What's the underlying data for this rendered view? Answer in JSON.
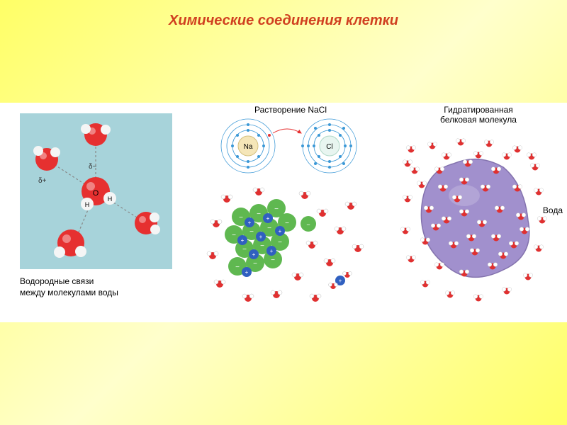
{
  "title": {
    "text": "Химические соединения клетки",
    "color": "#d04020",
    "fontsize": 20
  },
  "panel1": {
    "caption": "Водородные связи\nмежду молекулами воды",
    "bg": "#a7d3da",
    "delta_minus": "δ−",
    "delta_plus": "δ+",
    "labels": {
      "O": "O",
      "H": "H"
    },
    "atom_O_color": "#e63030",
    "atom_H_color": "#f0f0f0",
    "bond_dash": "#888"
  },
  "panel2": {
    "title": "Растворение NaCl",
    "na_label": "Na",
    "cl_label": "Cl",
    "na_fill": "#f5e6b8",
    "cl_fill": "#e8f5f0",
    "orbit_color": "#3b98d6",
    "electron_color": "#3b98d6",
    "ion_green": "#5fb850",
    "ion_blue": "#3060c0",
    "water_red": "#e03030",
    "water_white": "#ffffff"
  },
  "panel3": {
    "title": "Гидратированная\nбелковая молекула",
    "voda": "Вода",
    "protein_fill": "#9a87c9",
    "protein_stroke": "#7a68a8",
    "water_red": "#e03030",
    "water_white": "#ffffff"
  },
  "page_bg": "#ffff88"
}
